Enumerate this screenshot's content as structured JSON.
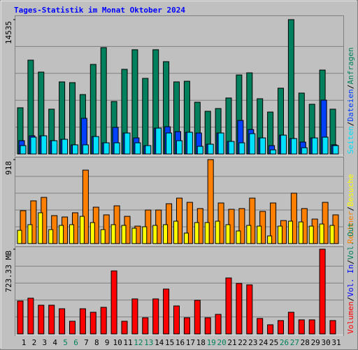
{
  "chart_data": {
    "type": "bar",
    "title": "Tages-Statistik im Monat Oktober 2024",
    "categories": [
      "1",
      "2",
      "3",
      "4",
      "5",
      "6",
      "7",
      "8",
      "9",
      "10",
      "11",
      "12",
      "13",
      "14",
      "15",
      "16",
      "17",
      "18",
      "19",
      "20",
      "21",
      "22",
      "23",
      "24",
      "25",
      "26",
      "27",
      "28",
      "29",
      "30",
      "31"
    ],
    "category_colors": [
      "#000000",
      "#000000",
      "#000000",
      "#000000",
      "#00805c",
      "#00805c",
      "#000000",
      "#000000",
      "#000000",
      "#000000",
      "#000000",
      "#00805c",
      "#00805c",
      "#000000",
      "#000000",
      "#000000",
      "#000000",
      "#000000",
      "#00805c",
      "#00805c",
      "#000000",
      "#000000",
      "#000000",
      "#000000",
      "#000000",
      "#00805c",
      "#00805c",
      "#000000",
      "#000000",
      "#000000",
      "#000000"
    ],
    "legend_separator": "/",
    "panels": [
      {
        "ylim": [
          0,
          14535
        ],
        "yticks": [
          14535
        ],
        "series": [
          {
            "name": "Anfragen",
            "color": "#00805c",
            "values": [
              5000,
              10150,
              8860,
              4850,
              7800,
              7720,
              6430,
              9690,
              11510,
              5680,
              9160,
              11280,
              8180,
              11280,
              9990,
              7800,
              7870,
              5600,
              4620,
              4920,
              6060,
              8550,
              8780,
              5980,
              4540,
              7120,
              14535,
              6590,
              5380,
              9080,
              4850
            ]
          },
          {
            "name": "Dateien",
            "color": "#0040ff",
            "values": [
              1440,
              1970,
              1970,
              1440,
              1590,
              990,
              3860,
              1890,
              1210,
              2880,
              2270,
              1740,
              910,
              2800,
              2950,
              2420,
              2350,
              2270,
              1060,
              2270,
              1360,
              3630,
              2650,
              1740,
              910,
              2040,
              1670,
              1290,
              1740,
              5830,
              990
            ]
          },
          {
            "name": "Seiten",
            "color": "#00e0ff",
            "values": [
              910,
              1820,
              1970,
              1440,
              1590,
              990,
              990,
              1890,
              1210,
              1210,
              2270,
              1210,
              910,
              2800,
              2270,
              1440,
              2350,
              830,
              1060,
              2270,
              1360,
              1210,
              2200,
              1740,
              450,
              2040,
              1670,
              680,
              1740,
              1820,
              910
            ]
          }
        ]
      },
      {
        "ylim": [
          0,
          918
        ],
        "yticks": [
          918
        ],
        "series": [
          {
            "name": "Besuche",
            "color": "#ffff00",
            "values": [
              145,
              207,
              337,
              153,
              199,
              207,
              298,
              230,
              153,
              207,
              199,
              168,
              184,
              199,
              207,
              245,
              115,
              230,
              230,
              245,
              207,
              138,
              199,
              191,
              84,
              191,
              245,
              237,
              191,
              214,
              199
            ]
          },
          {
            "name": "Rechner",
            "color": "#ff8000",
            "values": [
              360,
              467,
              505,
              306,
              291,
              337,
              803,
              398,
              314,
              413,
              298,
              191,
              367,
              367,
              436,
              497,
              451,
              383,
              918,
              444,
              375,
              383,
              497,
              352,
              444,
              252,
              551,
              383,
              268,
              451,
              314
            ]
          }
        ]
      },
      {
        "ylim": [
          0,
          723.33
        ],
        "yticks": [
          {
            "value": 723.33,
            "label": "723.33 MB"
          }
        ],
        "series": [
          {
            "name": "Volumen",
            "color": "#ff0000",
            "values": [
              281,
              305,
              245,
              245,
              215,
              108,
              215,
              185,
              227,
              538,
              108,
              299,
              138,
              299,
              383,
              239,
              138,
              287,
              138,
              167,
              478,
              431,
              419,
              132,
              78,
              114,
              185,
              120,
              120,
              723.33,
              114
            ]
          }
        ],
        "extra_legend": [
          {
            "name": "Vol. In",
            "color": "#0000ff"
          },
          {
            "name": "Vol. Out",
            "color": "#00805c"
          }
        ]
      }
    ]
  }
}
